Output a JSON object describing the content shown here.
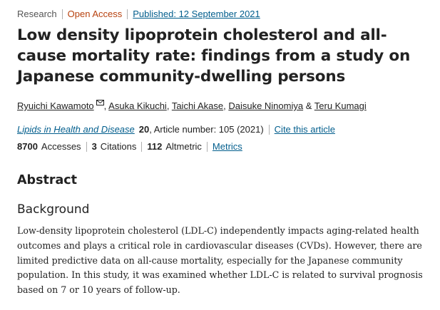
{
  "article": {
    "type": "Research",
    "access": "Open Access",
    "published": "Published: 12 September 2021",
    "title": "Low density lipoprotein cholesterol and all-cause mortality rate: findings from a study on Japanese community-dwelling persons",
    "authors": [
      {
        "name": "Ryuichi Kawamoto",
        "sep": ""
      },
      {
        "name": "Asuka Kikuchi",
        "sep": ", "
      },
      {
        "name": "Taichi Akase",
        "sep": ", "
      },
      {
        "name": "Daisuke Ninomiya",
        "sep": ", "
      },
      {
        "name": "Teru Kumagi",
        "sep": " & "
      }
    ],
    "journal": {
      "name": "Lipids in Health and Disease",
      "volume": "20",
      "article_info": ", Article number: 105 (2021)",
      "cite_label": "Cite this article"
    },
    "metrics": {
      "accesses_value": "8700",
      "accesses_label": "Accesses",
      "citations_value": "3",
      "citations_label": "Citations",
      "altmetric_value": "112",
      "altmetric_label": "Altmetric",
      "metrics_link": "Metrics"
    }
  },
  "abstract": {
    "heading": "Abstract",
    "section_heading": "Background",
    "text": "Low-density lipoprotein cholesterol (LDL-C) independently impacts aging-related health outcomes and plays a critical role in cardiovascular diseases (CVDs). However, there are limited predictive data on all-cause mortality, especially for the Japanese community population. In this study, it was examined whether LDL-C is related to survival prognosis based on 7 or 10 years of follow-up."
  },
  "icons": {
    "corresponding_author": "mail-icon"
  },
  "colors": {
    "link": "#025e8d",
    "open_access": "#b7410e",
    "text": "#222222"
  }
}
